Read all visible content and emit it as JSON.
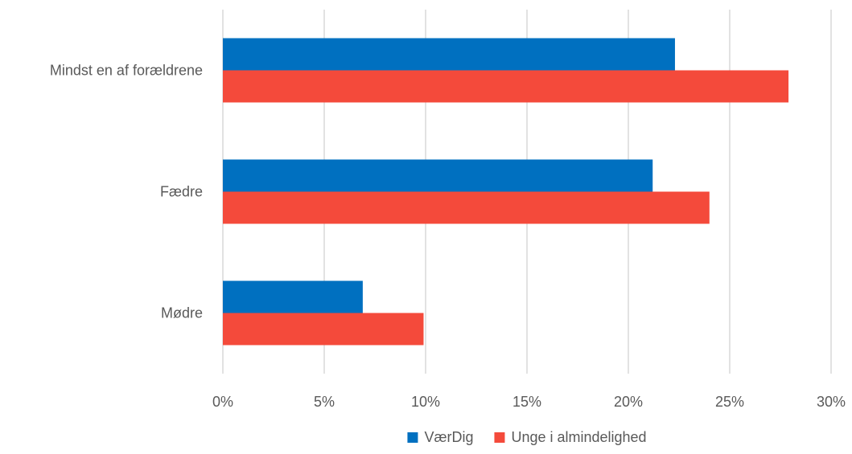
{
  "chart_data": {
    "type": "bar",
    "orientation": "horizontal",
    "categories": [
      "Mindst en af forældrene",
      "Fædre",
      "Mødre"
    ],
    "series": [
      {
        "name": "VærDig",
        "values": [
          22.3,
          21.2,
          6.9
        ],
        "color": "#0070C0"
      },
      {
        "name": "Unge i almindelighed",
        "values": [
          27.9,
          24.0,
          9.9
        ],
        "color": "#F44A3B"
      }
    ],
    "xlim": [
      0,
      30
    ],
    "xticks": [
      "0%",
      "5%",
      "10%",
      "15%",
      "20%",
      "25%",
      "30%"
    ],
    "grid": true,
    "legend_position": "bottom"
  }
}
